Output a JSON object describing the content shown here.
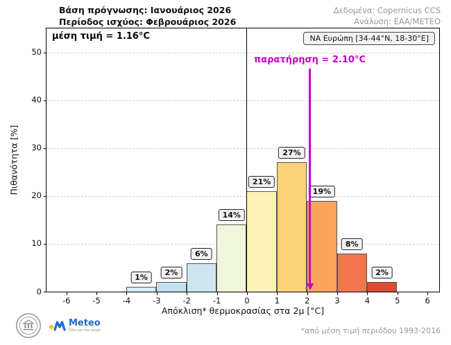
{
  "header": {
    "forecast_base": "Βάση πρόγνωσης: Ιανουάριος 2026",
    "valid_period": "Περίοδος ισχύος: Φεβρουάριος 2026",
    "data_source": "Δεδομένα: Copernicus CCS",
    "analysis": "Ανάλυση: ΕΑΑ/ΜΕΤΕΟ"
  },
  "annotations": {
    "mean_label": "μέση τιμή = 1.16°C",
    "region_label": "ΝΑ Ευρώπη [34-44°N, 18-30°E]",
    "observation_label": "παρατήρηση = 2.10°C",
    "observation_value": 2.1,
    "observation_color": "#c400c4"
  },
  "chart_data": {
    "type": "bar",
    "title": "",
    "xlabel": "Απόκλιση* θερμοκρασίας στα 2μ [°C]",
    "ylabel": "Πιθανότητα [%]",
    "xlim": [
      -6.65,
      6.4
    ],
    "ylim": [
      0,
      55
    ],
    "xticks": [
      -6,
      -5,
      -4,
      -3,
      -2,
      -1,
      0,
      1,
      2,
      3,
      4,
      5,
      6
    ],
    "yticks": [
      0,
      10,
      20,
      30,
      40,
      50
    ],
    "grid": "horizontal-dashed",
    "legend": "none",
    "zero_line_x": 0,
    "mean_value_c": 1.16,
    "observation_c": 2.1,
    "bins": [
      {
        "x0": -4,
        "x1": -3,
        "value": 1,
        "label": "1%",
        "color": "#d9ecf4"
      },
      {
        "x0": -3,
        "x1": -2,
        "value": 2,
        "label": "2%",
        "color": "#c2e0ee"
      },
      {
        "x0": -2,
        "x1": -1,
        "value": 6,
        "label": "6%",
        "color": "#cbe6f0"
      },
      {
        "x0": -1,
        "x1": 0,
        "value": 14,
        "label": "14%",
        "color": "#f0f6da"
      },
      {
        "x0": 0,
        "x1": 1,
        "value": 21,
        "label": "21%",
        "color": "#fdf1b8"
      },
      {
        "x0": 1,
        "x1": 2,
        "value": 27,
        "label": "27%",
        "color": "#fdd277"
      },
      {
        "x0": 2,
        "x1": 3,
        "value": 19,
        "label": "19%",
        "color": "#fca55d"
      },
      {
        "x0": 3,
        "x1": 4,
        "value": 8,
        "label": "8%",
        "color": "#f1764b"
      },
      {
        "x0": 4,
        "x1": 5,
        "value": 2,
        "label": "2%",
        "color": "#dd4a32"
      }
    ]
  },
  "footer": {
    "footnote": "*από μέση τιμή περιόδου 1993-2016",
    "meteo_label": "Meteo",
    "meteo_tagline": "Όλα για τον καιρό"
  }
}
